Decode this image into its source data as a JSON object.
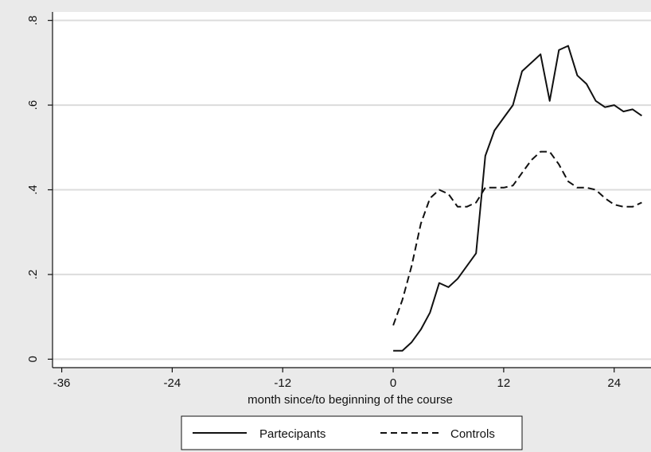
{
  "chart_data": {
    "type": "line",
    "title": "",
    "xlabel": "month since/to beginning of the course",
    "ylabel": "",
    "xlim": [
      -37,
      28
    ],
    "ylim": [
      -0.02,
      0.82
    ],
    "xticks": [
      {
        "value": -36,
        "label": "-36"
      },
      {
        "value": -24,
        "label": "-24"
      },
      {
        "value": -12,
        "label": "-12"
      },
      {
        "value": 0,
        "label": "0"
      },
      {
        "value": 12,
        "label": "12"
      },
      {
        "value": 24,
        "label": "24"
      }
    ],
    "yticks": [
      {
        "value": 0,
        "label": "0"
      },
      {
        "value": 0.2,
        "label": ".2"
      },
      {
        "value": 0.4,
        "label": ".4"
      },
      {
        "value": 0.6,
        "label": ".6"
      },
      {
        "value": 0.8,
        "label": ".8"
      }
    ],
    "grid": true,
    "legend_position": "bottom",
    "series": [
      {
        "name": "Partecipants",
        "style": "solid",
        "color": "#111111",
        "x": [
          0,
          1,
          2,
          3,
          4,
          5,
          6,
          7,
          8,
          9,
          10,
          11,
          12,
          13,
          14,
          15,
          16,
          17,
          18,
          19,
          20,
          21,
          22,
          23,
          24,
          25,
          26,
          27
        ],
        "y": [
          0.02,
          0.02,
          0.04,
          0.07,
          0.11,
          0.18,
          0.17,
          0.19,
          0.22,
          0.25,
          0.48,
          0.54,
          0.57,
          0.6,
          0.68,
          0.7,
          0.72,
          0.61,
          0.73,
          0.74,
          0.67,
          0.65,
          0.61,
          0.595,
          0.6,
          0.585,
          0.59,
          0.575
        ]
      },
      {
        "name": "Controls",
        "style": "dashed",
        "color": "#111111",
        "x": [
          0,
          1,
          2,
          3,
          4,
          5,
          6,
          7,
          8,
          9,
          10,
          11,
          12,
          13,
          14,
          15,
          16,
          17,
          18,
          19,
          20,
          21,
          22,
          23,
          24,
          25,
          26,
          27
        ],
        "y": [
          0.08,
          0.14,
          0.22,
          0.32,
          0.38,
          0.4,
          0.39,
          0.36,
          0.36,
          0.37,
          0.405,
          0.405,
          0.405,
          0.41,
          0.44,
          0.47,
          0.49,
          0.49,
          0.46,
          0.42,
          0.405,
          0.405,
          0.4,
          0.38,
          0.365,
          0.36,
          0.36,
          0.37
        ]
      }
    ]
  }
}
